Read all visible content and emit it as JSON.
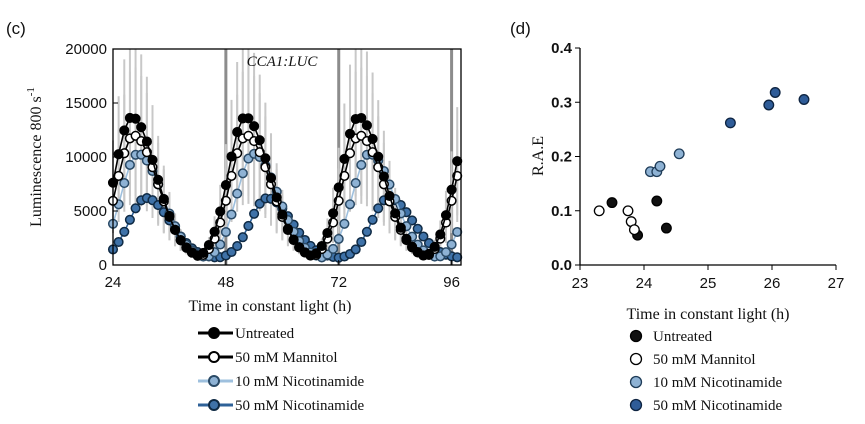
{
  "chart_data": [
    {
      "panel_label": "(c)",
      "type": "line",
      "title": "CCA1:LUC",
      "xlabel": "Time in constant light (h)",
      "ylabel": "Luminescence 800 s-1",
      "ylabel_main": "Luminescence 800 s",
      "ylabel_sup": "-1",
      "xlim": [
        24,
        98
      ],
      "ylim": [
        0,
        20000
      ],
      "xticks": [
        "24",
        "48",
        "72",
        "96"
      ],
      "yticks": [
        "0",
        "5000",
        "10000",
        "15000",
        "20000"
      ],
      "series": [
        {
          "name": "Untreated",
          "color": "#000000",
          "marker_fill": "#000000",
          "marker_stroke": "#000000",
          "line_color": "#000000",
          "period": 24.1,
          "peak_time": 28.0,
          "amplitude": 13200,
          "baseline": 500
        },
        {
          "name": "50 mM Mannitol",
          "color": "#000000",
          "marker_fill": "#ffffff",
          "marker_stroke": "#000000",
          "line_color": "#000000",
          "period": 24.0,
          "peak_time": 28.4,
          "amplitude": 11500,
          "baseline": 500
        },
        {
          "name": "10 mM Nicotinamide",
          "color": "#7fa9cf",
          "marker_fill": "#8eb2d4",
          "marker_stroke": "#2a4a66",
          "line_color": "#9ec0de",
          "period": 24.6,
          "peak_time": 29.3,
          "amplitude": 9800,
          "baseline": 500
        },
        {
          "name": "50 mM Nicotinamide",
          "color": "#2f5f8f",
          "marker_fill": "#3f72a8",
          "marker_stroke": "#0f2a44",
          "line_color": "#2f6298",
          "period": 25.8,
          "peak_time": 31.0,
          "amplitude": 5600,
          "baseline": 600
        }
      ],
      "error_bar_color": "#c8c8c8"
    },
    {
      "panel_label": "(d)",
      "type": "scatter",
      "xlabel": "Time in constant light (h)",
      "ylabel": "R.A.E",
      "xlim": [
        23,
        27
      ],
      "ylim": [
        0,
        0.4
      ],
      "xticks": [
        "23",
        "24",
        "25",
        "26",
        "27"
      ],
      "yticks": [
        "0.0",
        "0.1",
        "0.2",
        "0.3",
        "0.4"
      ],
      "series": [
        {
          "name": "Untreated",
          "fill": "#111111",
          "stroke": "#000000",
          "points": [
            [
              23.5,
              0.115
            ],
            [
              23.9,
              0.055
            ],
            [
              24.2,
              0.118
            ],
            [
              24.35,
              0.068
            ]
          ]
        },
        {
          "name": "50 mM Mannitol",
          "fill": "#ffffff",
          "stroke": "#000000",
          "points": [
            [
              23.3,
              0.1
            ],
            [
              23.75,
              0.1
            ],
            [
              23.8,
              0.08
            ],
            [
              23.85,
              0.065
            ]
          ]
        },
        {
          "name": "10 mM Nicotinamide",
          "fill": "#8eb2d4",
          "stroke": "#1e3b57",
          "points": [
            [
              24.1,
              0.172
            ],
            [
              24.2,
              0.172
            ],
            [
              24.25,
              0.182
            ],
            [
              24.55,
              0.205
            ]
          ]
        },
        {
          "name": "50 mM Nicotinamide",
          "fill": "#2f5c98",
          "stroke": "#0d2340",
          "points": [
            [
              25.35,
              0.262
            ],
            [
              25.95,
              0.295
            ],
            [
              26.05,
              0.318
            ],
            [
              26.5,
              0.305
            ]
          ]
        }
      ]
    }
  ]
}
